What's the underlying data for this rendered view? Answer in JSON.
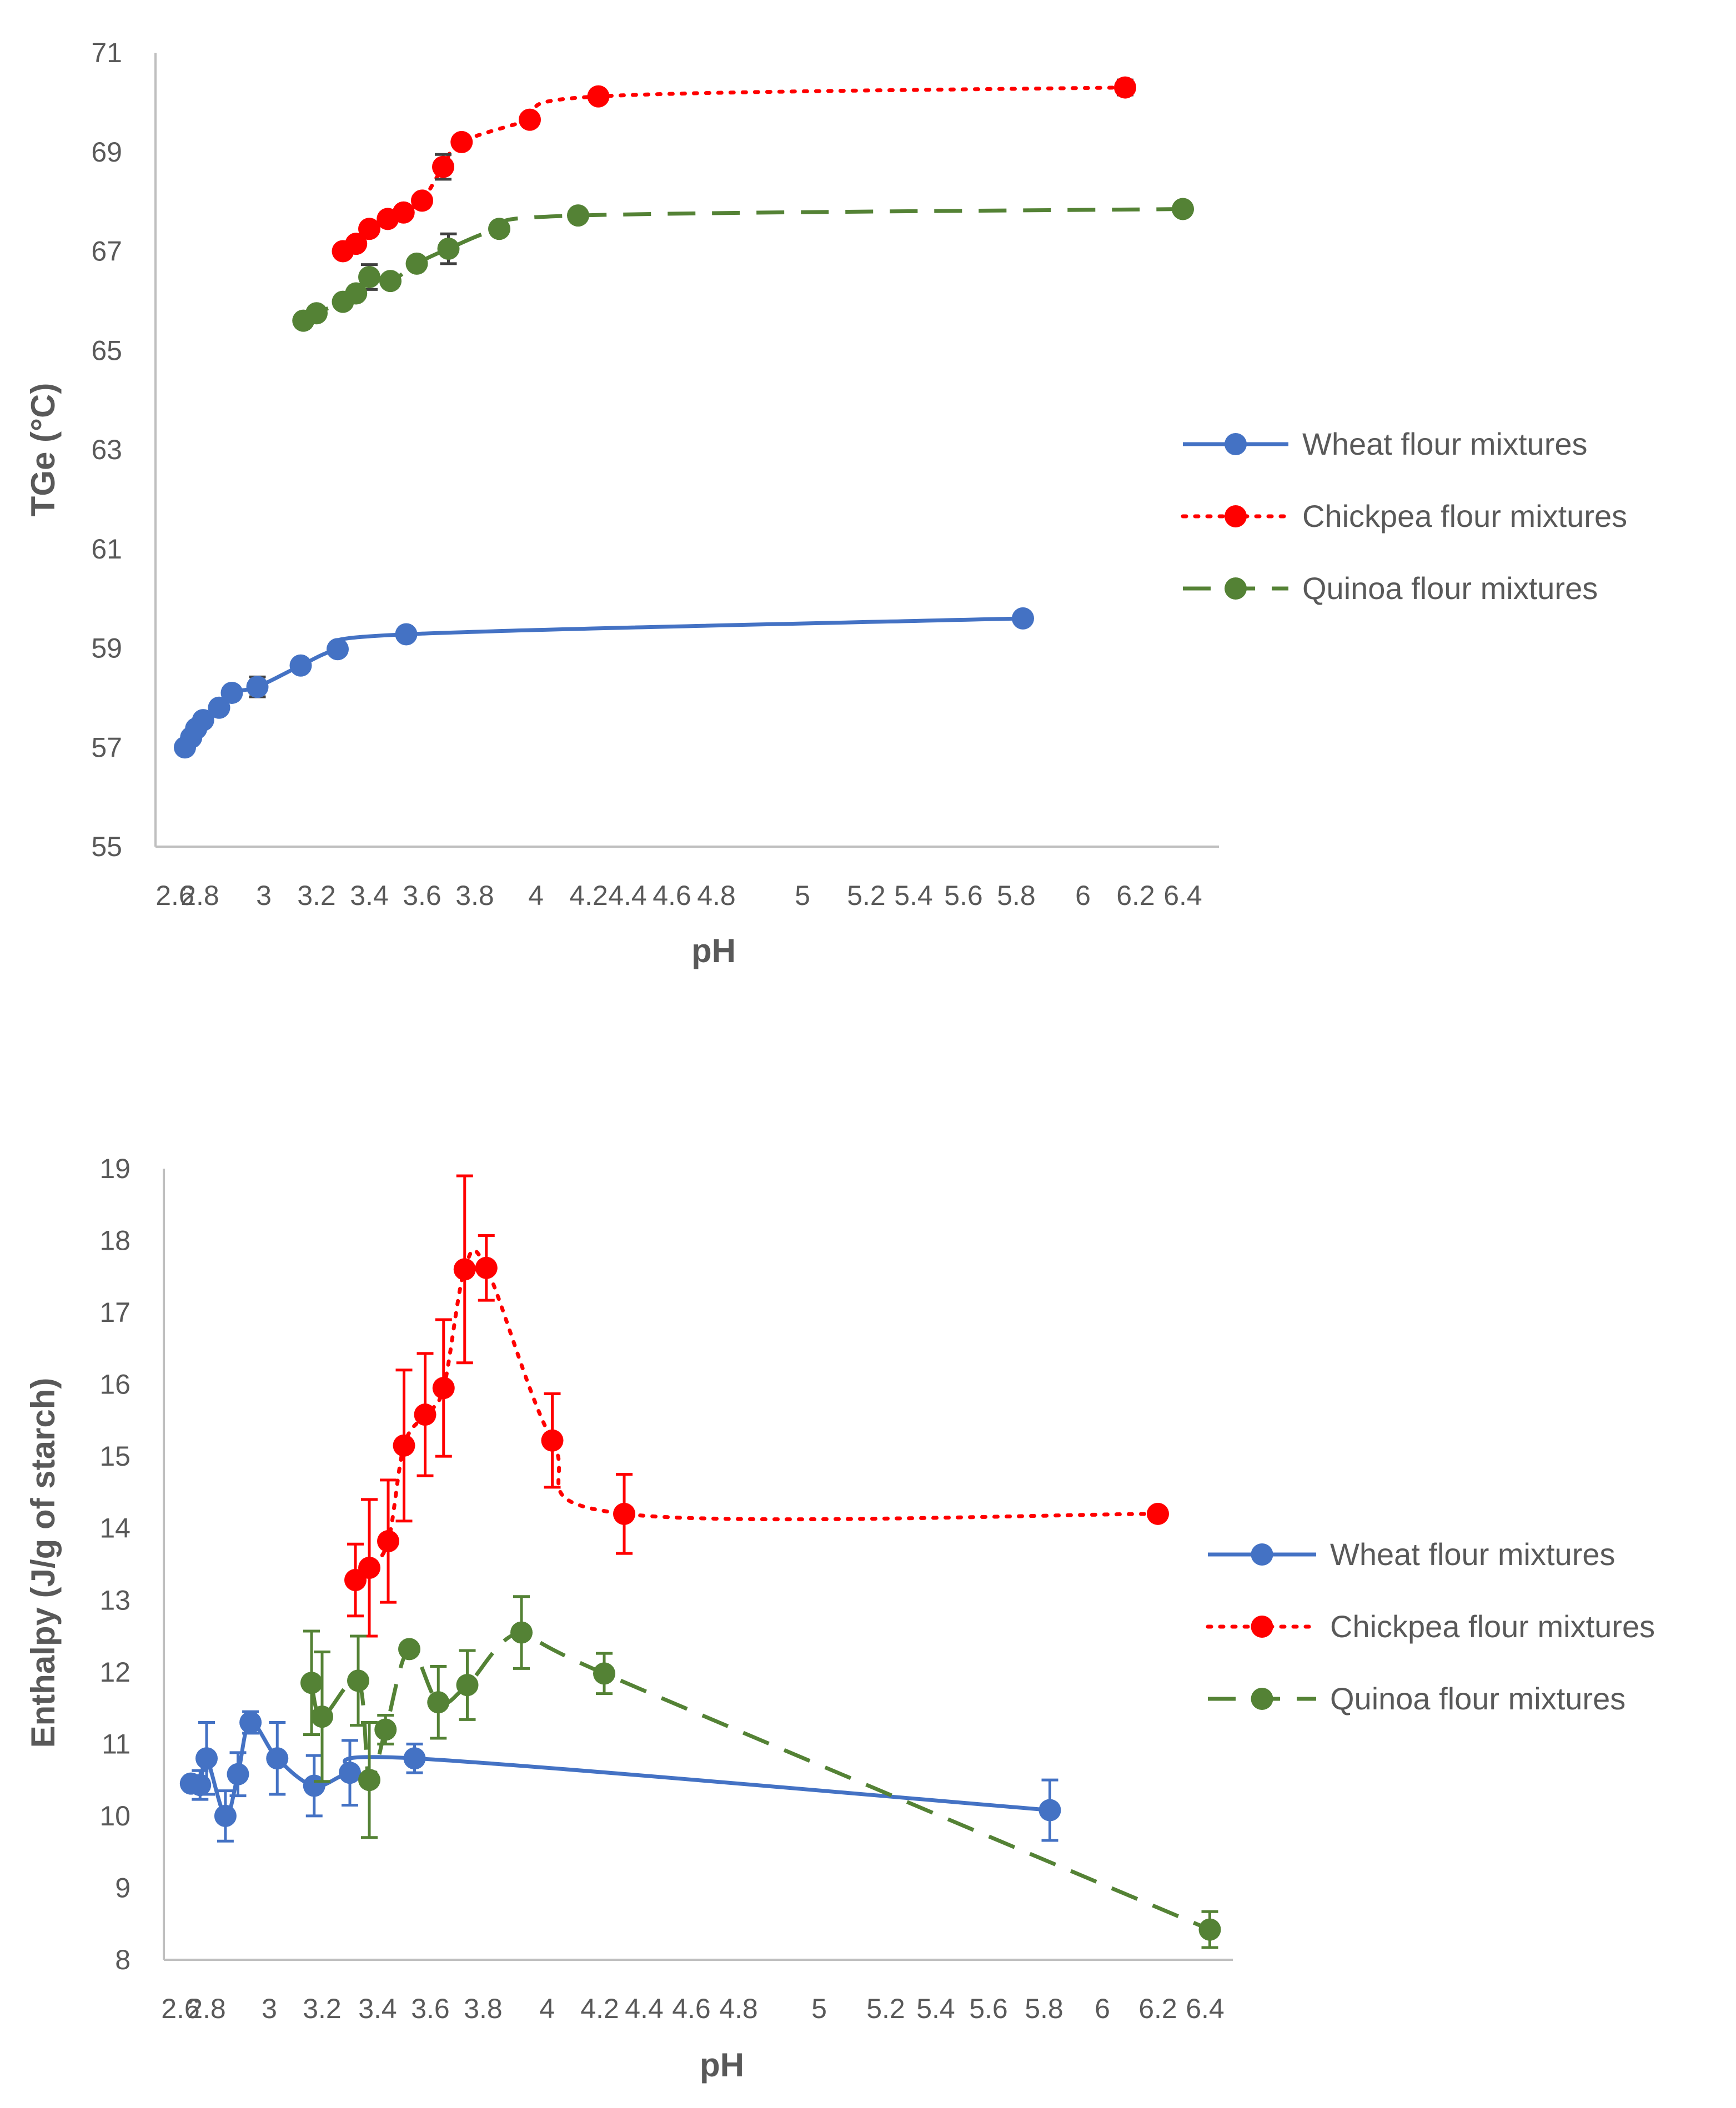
{
  "chart_data": [
    {
      "type": "line",
      "title": "",
      "xlabel": "pH",
      "ylabel": "TGe (°C)",
      "ylim": [
        55,
        71
      ],
      "y_ticks": [
        "55",
        "57",
        "59",
        "61",
        "63",
        "65",
        "67",
        "69",
        "71"
      ],
      "x_tick_labels": [
        "2.6",
        "2.8",
        "3",
        "3.2",
        "3.4",
        "3.6",
        "3.8",
        "4",
        "4.2",
        "4.4",
        "4.6",
        "4.8",
        "5",
        "5.2",
        "5.4",
        "5.6",
        "5.8",
        "6",
        "6.2",
        "6.4"
      ],
      "grid": false,
      "legend_position": "right",
      "series": [
        {
          "name": "Wheat flour mixtures",
          "color": "#4472C4",
          "line_style": "solid",
          "x": [
            2.68,
            2.73,
            2.77,
            2.81,
            2.86,
            2.9,
            2.98,
            3.14,
            3.28,
            3.54,
            5.82
          ],
          "y": [
            57.0,
            57.2,
            57.38,
            57.55,
            57.8,
            58.1,
            58.22,
            58.65,
            58.98,
            59.28,
            59.6
          ],
          "err": [
            0.05,
            0.05,
            0.05,
            0.05,
            0.05,
            0.05,
            0.2,
            0.05,
            0.05,
            0.05,
            0.05
          ]
        },
        {
          "name": "Chickpea flour mixtures",
          "color": "#FF0000",
          "line_style": "dotted",
          "x": [
            3.3,
            3.35,
            3.4,
            3.47,
            3.53,
            3.6,
            3.68,
            3.75,
            3.98,
            4.25,
            6.16
          ],
          "y": [
            67.0,
            67.15,
            67.45,
            67.65,
            67.78,
            68.02,
            68.7,
            69.2,
            69.65,
            70.12,
            70.3
          ],
          "err": [
            0.08,
            0.08,
            0.1,
            0.12,
            0.12,
            0.1,
            0.25,
            0.12,
            0.1,
            0.1,
            0.15
          ]
        },
        {
          "name": "Quinoa flour mixtures",
          "color": "#548235",
          "line_style": "dashed",
          "x": [
            3.15,
            3.2,
            3.3,
            3.35,
            3.4,
            3.48,
            3.58,
            3.7,
            3.88,
            4.16,
            6.4
          ],
          "y": [
            65.6,
            65.75,
            65.98,
            66.15,
            66.48,
            66.4,
            66.75,
            67.05,
            67.45,
            67.72,
            67.85
          ],
          "err": [
            0.05,
            0.05,
            0.05,
            0.05,
            0.25,
            0.05,
            0.05,
            0.3,
            0.05,
            0.05,
            0.05
          ]
        }
      ]
    },
    {
      "type": "line",
      "title": "",
      "xlabel": "pH",
      "ylabel": "Enthalpy (J/g of starch)",
      "ylim": [
        8,
        19
      ],
      "y_ticks": [
        "8",
        "9",
        "10",
        "11",
        "12",
        "13",
        "14",
        "15",
        "16",
        "17",
        "18",
        "19"
      ],
      "x_tick_labels": [
        "2.6",
        "2.8",
        "3",
        "3.2",
        "3.4",
        "3.6",
        "3.8",
        "4",
        "4.2",
        "4.4",
        "4.6",
        "4.8",
        "5",
        "5.2",
        "5.4",
        "5.6",
        "5.8",
        "6",
        "6.2",
        "6.4"
      ],
      "grid": false,
      "legend_position": "right",
      "series": [
        {
          "name": "Wheat flour mixtures",
          "color": "#4472C4",
          "line_style": "solid",
          "x": [
            2.68,
            2.75,
            2.8,
            2.86,
            2.9,
            2.94,
            3.03,
            3.17,
            3.3,
            3.54,
            5.82
          ],
          "y": [
            10.45,
            10.43,
            10.8,
            10.0,
            10.58,
            11.3,
            10.8,
            10.42,
            10.6,
            10.8,
            10.08
          ],
          "err": [
            0.05,
            0.2,
            0.5,
            0.35,
            0.3,
            0.15,
            0.5,
            0.42,
            0.45,
            0.2,
            0.42
          ]
        },
        {
          "name": "Chickpea flour mixtures",
          "color": "#FF0000",
          "line_style": "dotted",
          "x": [
            3.32,
            3.37,
            3.44,
            3.5,
            3.58,
            3.65,
            3.73,
            3.81,
            4.02,
            4.31,
            6.2
          ],
          "y": [
            13.28,
            13.45,
            13.82,
            15.15,
            15.58,
            15.95,
            17.6,
            17.62,
            15.22,
            14.2,
            14.2
          ],
          "err": [
            0.5,
            0.95,
            0.85,
            1.05,
            0.85,
            0.95,
            1.3,
            0.45,
            0.65,
            0.55,
            0.05
          ]
        },
        {
          "name": "Quinoa flour mixtures",
          "color": "#548235",
          "line_style": "dashed",
          "x": [
            3.16,
            3.2,
            3.33,
            3.37,
            3.43,
            3.52,
            3.63,
            3.74,
            3.92,
            4.22,
            6.42
          ],
          "y": [
            11.85,
            11.38,
            11.88,
            10.5,
            11.2,
            12.32,
            11.58,
            11.82,
            12.55,
            11.98,
            8.42
          ],
          "err": [
            0.72,
            0.9,
            0.62,
            0.8,
            0.2,
            0.05,
            0.5,
            0.48,
            0.5,
            0.28,
            0.25
          ]
        }
      ]
    }
  ]
}
